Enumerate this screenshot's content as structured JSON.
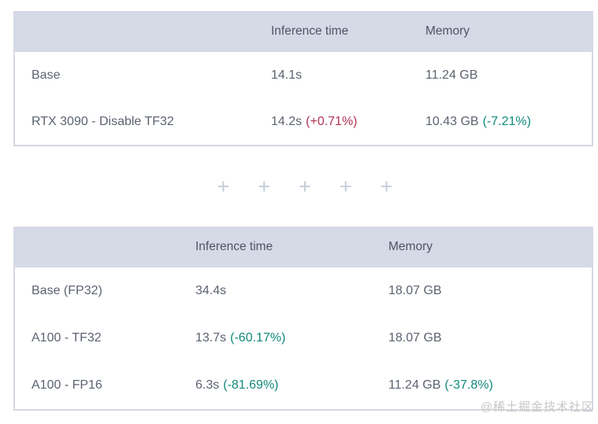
{
  "colors": {
    "page_background": "#ffffff",
    "header_background": "#d6d9e6",
    "header_text": "#4d5565",
    "body_text": "#5c6370",
    "table_border": "#d5d8e0",
    "increase_delta": "#b13455",
    "decrease_delta": "#11897a",
    "plus_icon": "#c5cdda",
    "watermark_text": "#c7c7c7"
  },
  "tables": [
    {
      "name": "rtx-3090-benchmark-table",
      "columns": [
        "",
        "Inference time",
        "Memory"
      ],
      "rows": [
        {
          "label": "Base",
          "inference": "14.1s",
          "inference_delta": "",
          "memory": "11.24 GB",
          "memory_delta": ""
        },
        {
          "label": "RTX 3090 - Disable TF32",
          "inference": "14.2s",
          "inference_delta": "(+0.71%)",
          "memory": "10.43 GB",
          "memory_delta": "(-7.21%)"
        }
      ]
    },
    {
      "name": "a100-benchmark-table",
      "columns": [
        "",
        "Inference time",
        "Memory"
      ],
      "rows": [
        {
          "label": "Base (FP32)",
          "inference": "34.4s",
          "inference_delta": "",
          "memory": "18.07 GB",
          "memory_delta": ""
        },
        {
          "label": "A100 - TF32",
          "inference": "13.7s",
          "inference_delta": "(-60.17%)",
          "memory": "18.07 GB",
          "memory_delta": ""
        },
        {
          "label": "A100 - FP16",
          "inference": "6.3s",
          "inference_delta": "(-81.69%)",
          "memory": "11.24 GB",
          "memory_delta": "(-37.8%)"
        }
      ]
    }
  ],
  "separator": {
    "glyph": "+",
    "count": 5
  },
  "watermark": {
    "text": "@稀土掘金技术社区"
  }
}
